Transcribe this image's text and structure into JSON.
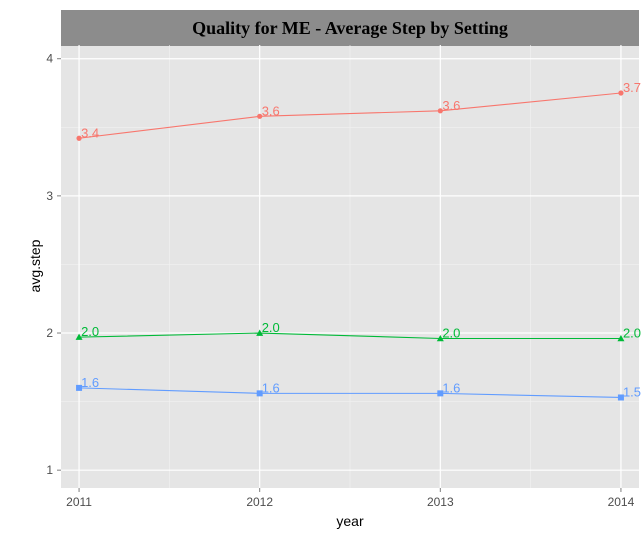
{
  "chart_data": {
    "type": "line",
    "title": "Quality for ME - Average Step by Setting",
    "xlabel": "year",
    "ylabel": "avg.step",
    "x": [
      2011,
      2012,
      2013,
      2014
    ],
    "x_ticks": [
      "2011",
      "2012",
      "2013",
      "2014"
    ],
    "y_ticks": [
      "1",
      "2",
      "3",
      "4"
    ],
    "xlim": [
      2010.9,
      2014.1
    ],
    "ylim": [
      0.87,
      4.1
    ],
    "grid": true,
    "legend": "none",
    "series": [
      {
        "color": "#F8766D",
        "marker": "circle",
        "values": [
          3.42,
          3.58,
          3.62,
          3.75
        ],
        "labels": [
          "3.4",
          "3.6",
          "3.6",
          "3.7"
        ]
      },
      {
        "color": "#00BA38",
        "marker": "triangle",
        "values": [
          1.97,
          2.0,
          1.96,
          1.96
        ],
        "labels": [
          "2.0",
          "2.0",
          "2.0",
          "2.0"
        ]
      },
      {
        "color": "#619CFF",
        "marker": "square",
        "values": [
          1.6,
          1.56,
          1.56,
          1.53
        ],
        "labels": [
          "1.6",
          "1.6",
          "1.6",
          "1.5"
        ]
      }
    ]
  }
}
